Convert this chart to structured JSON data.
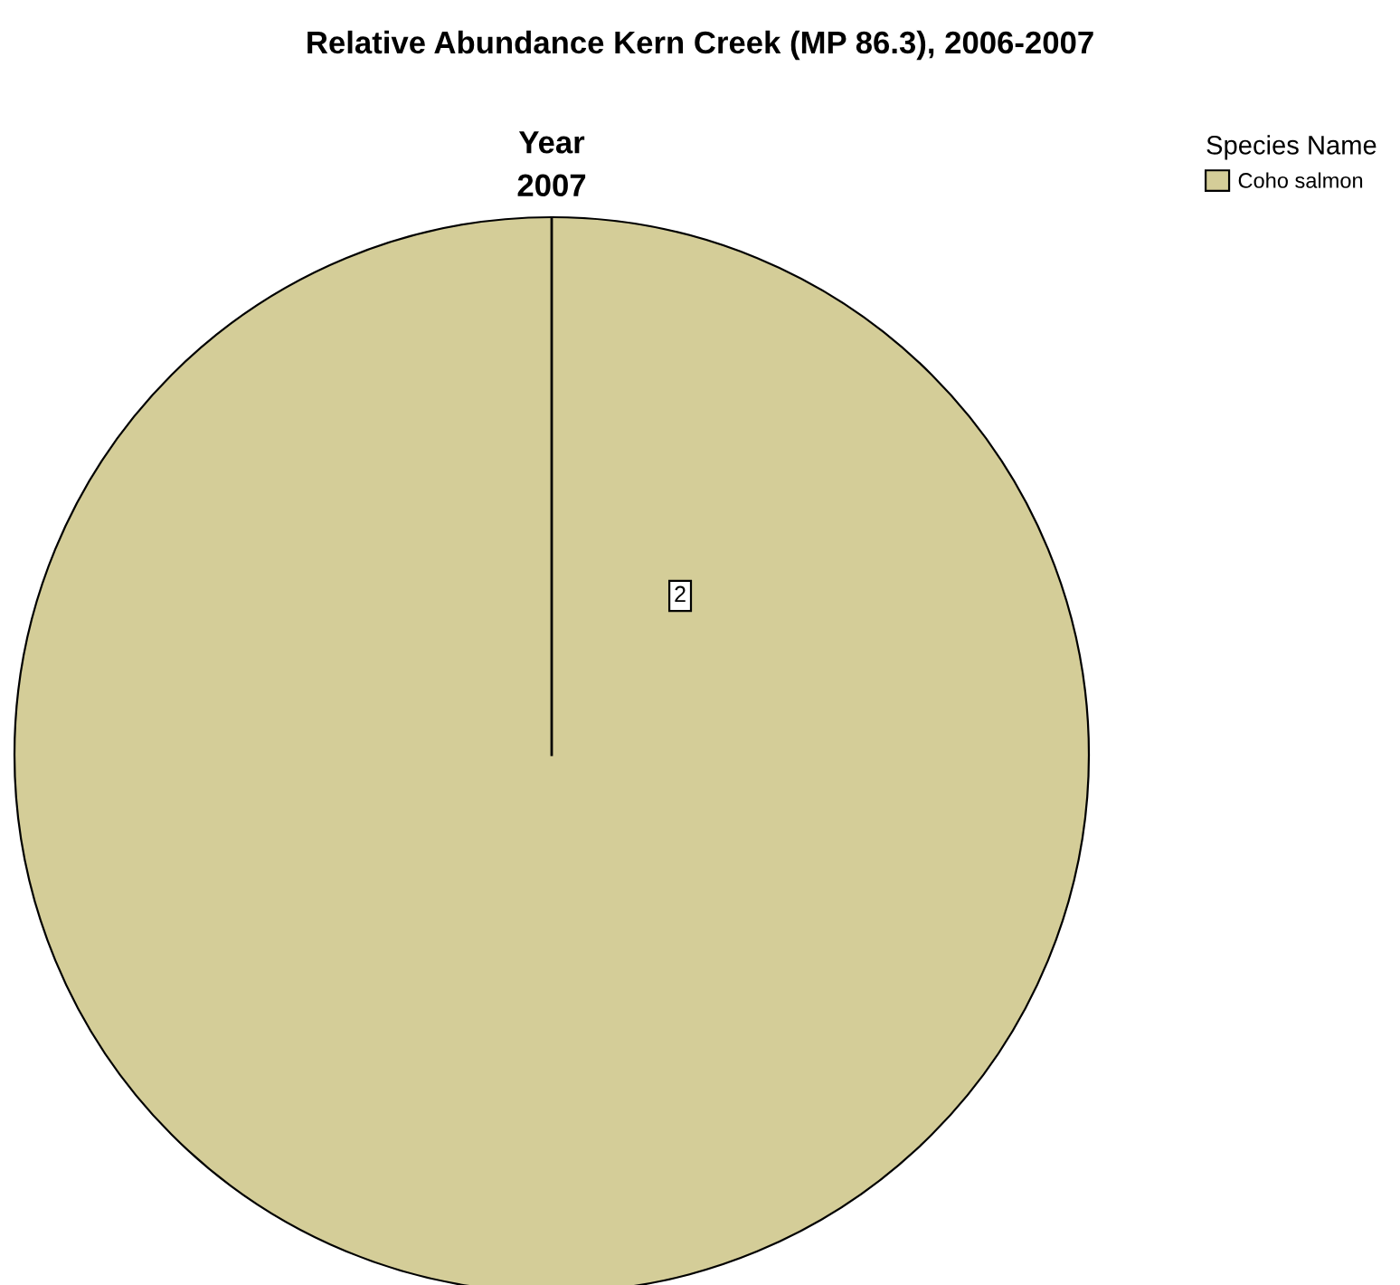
{
  "chart_data": {
    "type": "pie",
    "title": "Relative Abundance Kern Creek (MP 86.3), 2006-2007",
    "subtitle": "Year\n2007",
    "categories": [
      "Coho salmon"
    ],
    "values": [
      2
    ],
    "colors": [
      "#d4cd98"
    ],
    "data_labels": true,
    "needle": "Coho salmon",
    "legend": "top right",
    "legend_title": "Species Name"
  }
}
